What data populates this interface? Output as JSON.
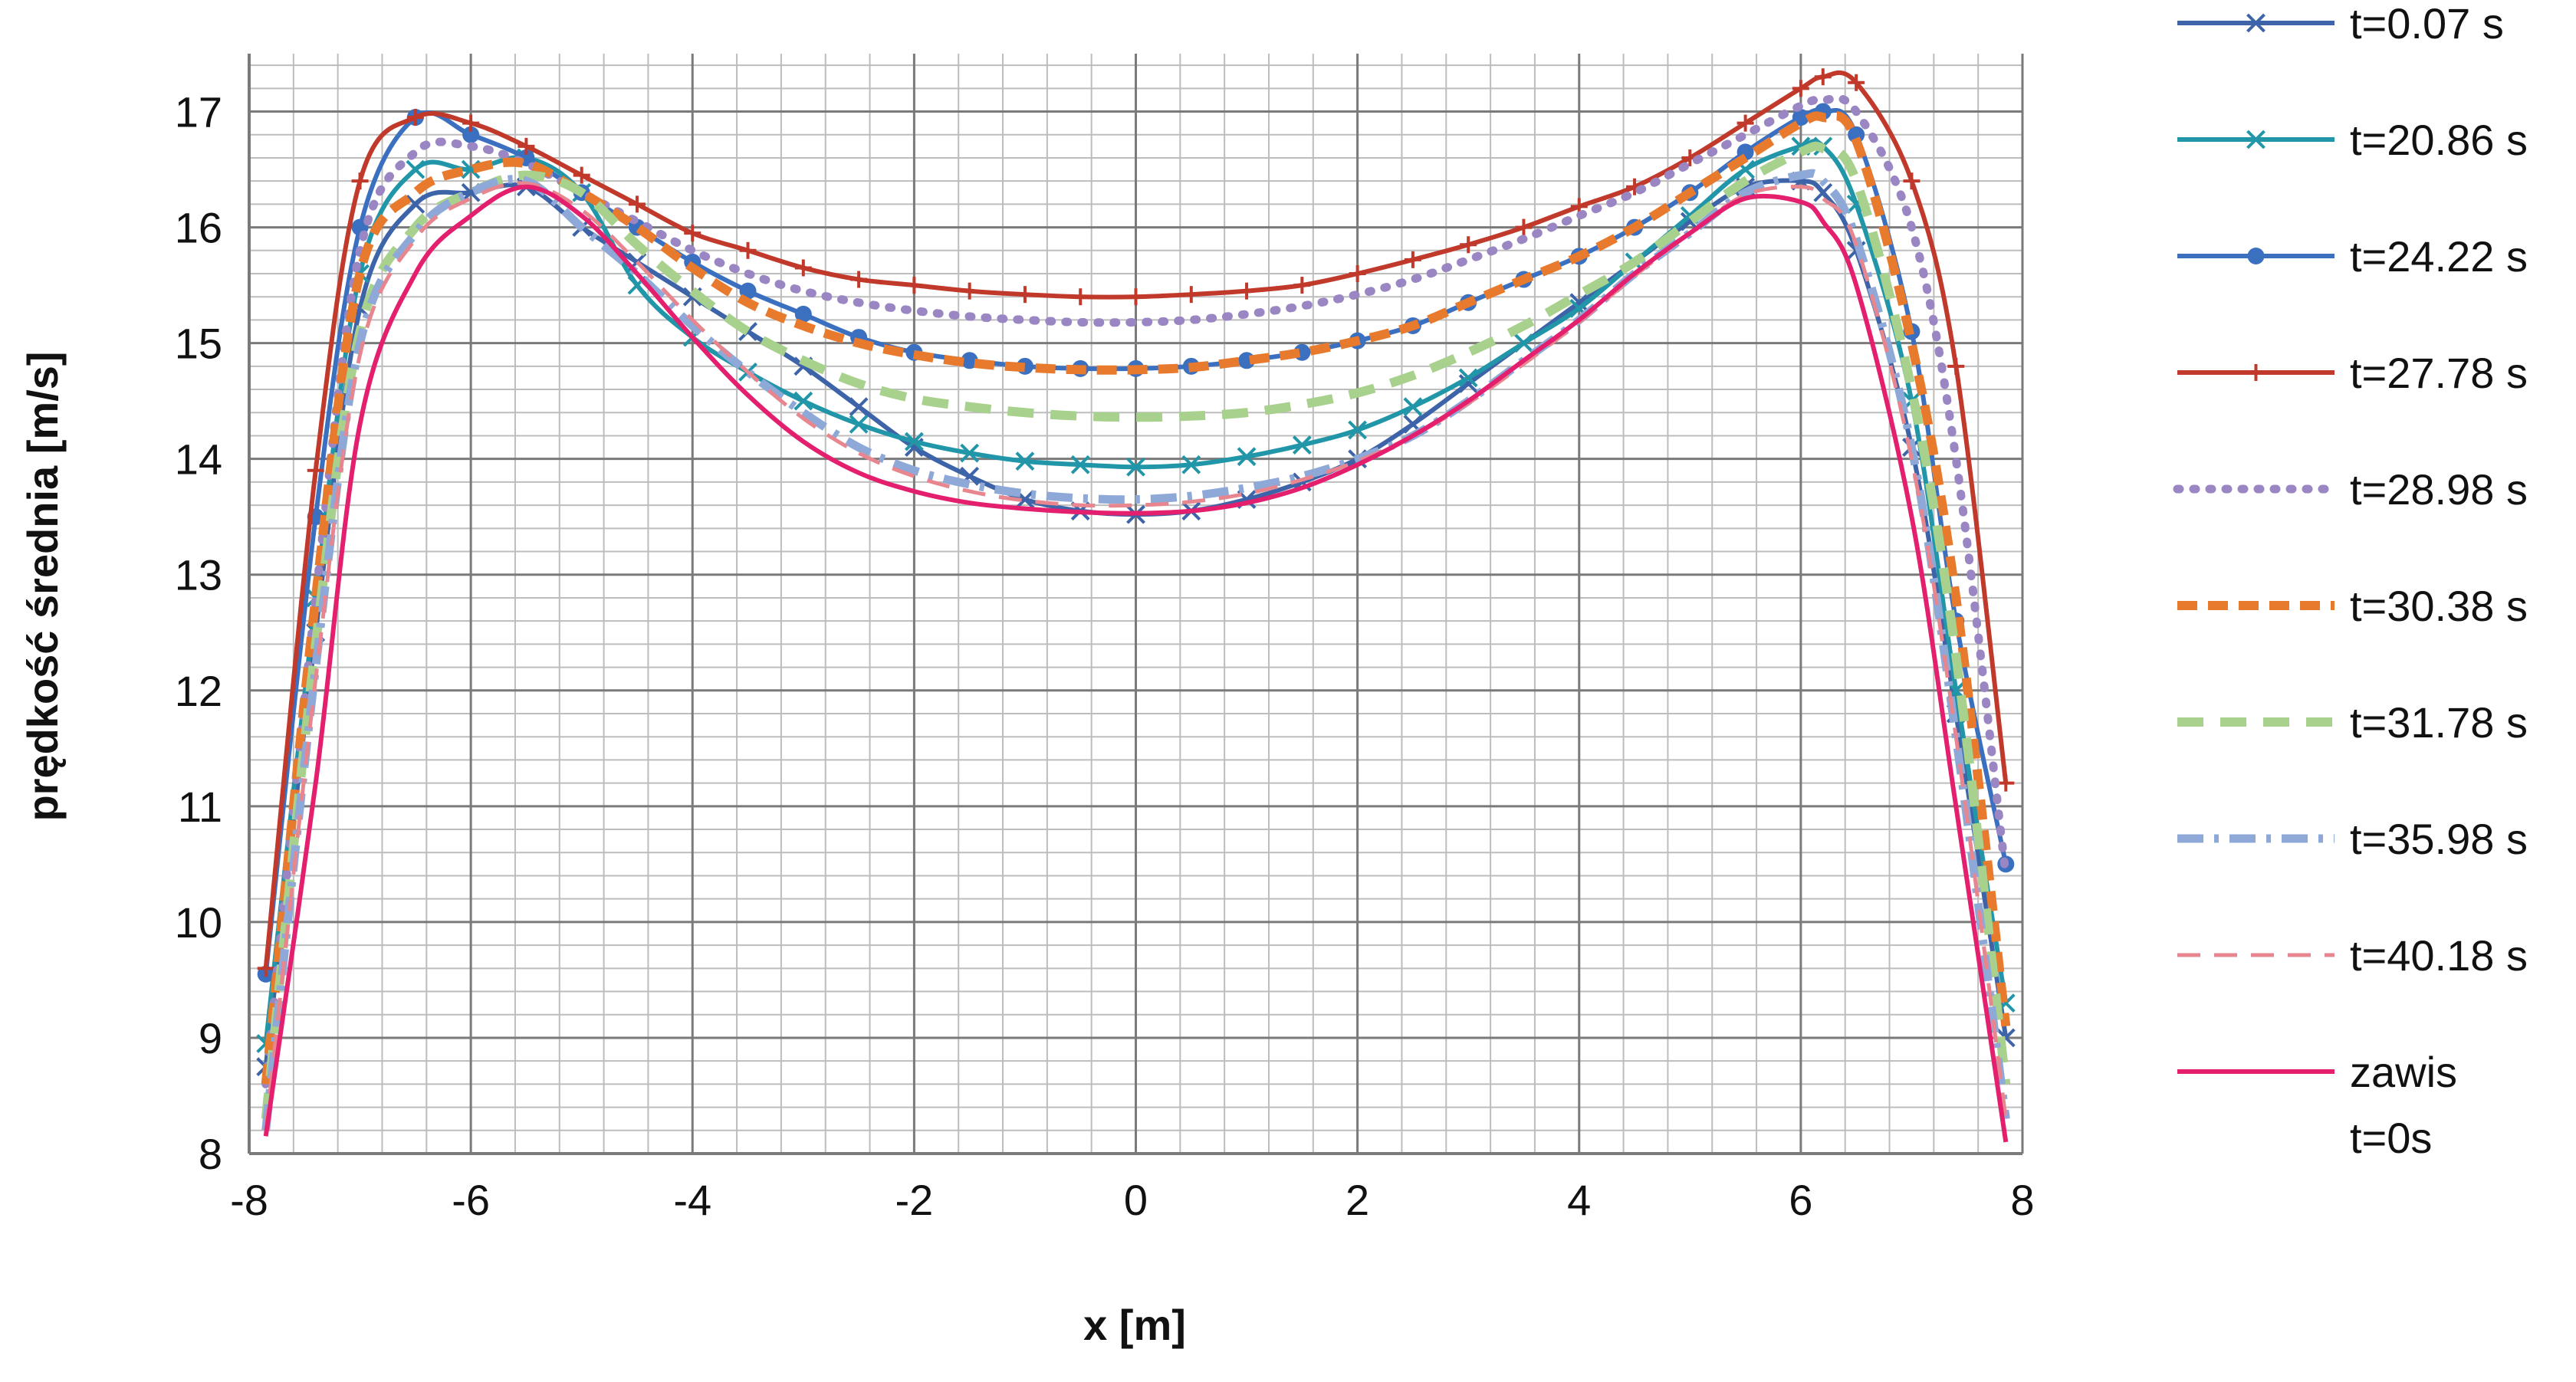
{
  "chart_data": {
    "type": "line",
    "title": "",
    "xlabel": "x [m]",
    "ylabel": "prędkość średnia [m/s]",
    "xlim": [
      -8,
      8
    ],
    "ylim": [
      8,
      17.5
    ],
    "x_ticks": [
      -8,
      -6,
      -4,
      -2,
      0,
      2,
      4,
      6,
      8
    ],
    "y_ticks": [
      8,
      9,
      10,
      11,
      12,
      13,
      14,
      15,
      16,
      17
    ],
    "grid": true,
    "legend_position": "right",
    "x": [
      -7.85,
      -7.4,
      -7.0,
      -6.5,
      -6.0,
      -5.5,
      -5.0,
      -4.5,
      -4.0,
      -3.5,
      -3.0,
      -2.5,
      -2.0,
      -1.5,
      -1.0,
      -0.5,
      0,
      0.5,
      1.0,
      1.5,
      2.0,
      2.5,
      3.0,
      3.5,
      4.0,
      4.5,
      5.0,
      5.5,
      6.0,
      6.2,
      6.5,
      7.0,
      7.4,
      7.85
    ],
    "series": [
      {
        "name": "t=0.07 s",
        "color": "#3d63a8",
        "dash": "",
        "width": 6,
        "marker": "x",
        "values": [
          8.75,
          12.5,
          15.3,
          16.2,
          16.3,
          16.35,
          16.0,
          15.7,
          15.4,
          15.1,
          14.8,
          14.45,
          14.1,
          13.85,
          13.65,
          13.55,
          13.52,
          13.55,
          13.65,
          13.8,
          14.0,
          14.3,
          14.65,
          15.0,
          15.35,
          15.7,
          16.05,
          16.35,
          16.4,
          16.3,
          15.8,
          14.1,
          11.8,
          9.0
        ]
      },
      {
        "name": "t=20.86 s",
        "color": "#2196a8",
        "dash": "",
        "width": 6,
        "marker": "x",
        "values": [
          8.95,
          12.8,
          15.6,
          16.5,
          16.5,
          16.6,
          16.3,
          15.5,
          15.05,
          14.75,
          14.5,
          14.3,
          14.15,
          14.05,
          13.98,
          13.95,
          13.93,
          13.95,
          14.02,
          14.12,
          14.25,
          14.45,
          14.7,
          15.0,
          15.3,
          15.7,
          16.1,
          16.5,
          16.7,
          16.7,
          16.2,
          14.5,
          12.0,
          9.3
        ]
      },
      {
        "name": "t=24.22 s",
        "color": "#3b6fc0",
        "dash": "",
        "width": 6,
        "marker": "dot",
        "values": [
          9.55,
          13.5,
          16.0,
          16.95,
          16.8,
          16.6,
          16.3,
          16.0,
          15.7,
          15.45,
          15.25,
          15.05,
          14.92,
          14.85,
          14.8,
          14.78,
          14.78,
          14.8,
          14.85,
          14.92,
          15.02,
          15.15,
          15.35,
          15.55,
          15.75,
          16.0,
          16.3,
          16.65,
          16.95,
          17.0,
          16.8,
          15.1,
          12.6,
          10.5
        ]
      },
      {
        "name": "t=27.78 s",
        "color": "#c0392b",
        "dash": "",
        "width": 6,
        "marker": "plus",
        "values": [
          9.6,
          13.9,
          16.4,
          16.95,
          16.9,
          16.7,
          16.45,
          16.2,
          15.95,
          15.8,
          15.65,
          15.55,
          15.5,
          15.45,
          15.42,
          15.4,
          15.4,
          15.42,
          15.45,
          15.5,
          15.6,
          15.72,
          15.85,
          16.0,
          16.18,
          16.35,
          16.6,
          16.9,
          17.2,
          17.3,
          17.25,
          16.4,
          14.8,
          11.2
        ]
      },
      {
        "name": "t=28.98 s",
        "color": "#9b86c4",
        "dash": "3 18",
        "width": 11,
        "marker": "",
        "values": [
          8.6,
          12.8,
          15.8,
          16.65,
          16.7,
          16.55,
          16.3,
          16.05,
          15.8,
          15.6,
          15.45,
          15.35,
          15.28,
          15.23,
          15.2,
          15.18,
          15.18,
          15.2,
          15.25,
          15.32,
          15.42,
          15.55,
          15.72,
          15.9,
          16.1,
          16.3,
          16.55,
          16.8,
          17.05,
          17.1,
          17.0,
          16.0,
          14.0,
          10.4
        ]
      },
      {
        "name": "t=30.38 s",
        "color": "#e87a2e",
        "dash": "26 14",
        "width": 12,
        "marker": "",
        "values": [
          8.6,
          12.8,
          15.6,
          16.3,
          16.5,
          16.55,
          16.3,
          16.0,
          15.65,
          15.35,
          15.15,
          15.0,
          14.9,
          14.83,
          14.79,
          14.77,
          14.77,
          14.79,
          14.85,
          14.92,
          15.02,
          15.15,
          15.35,
          15.55,
          15.75,
          16.0,
          16.3,
          16.6,
          16.9,
          16.95,
          16.75,
          15.0,
          12.8,
          9.1
        ]
      },
      {
        "name": "t=31.78 s",
        "color": "#a8d18d",
        "dash": "34 22",
        "width": 12,
        "marker": "",
        "values": [
          8.3,
          12.4,
          15.1,
          16.0,
          16.3,
          16.45,
          16.3,
          15.85,
          15.45,
          15.1,
          14.85,
          14.65,
          14.52,
          14.45,
          14.4,
          14.37,
          14.36,
          14.37,
          14.4,
          14.47,
          14.57,
          14.72,
          14.92,
          15.15,
          15.42,
          15.7,
          16.05,
          16.4,
          16.65,
          16.68,
          16.4,
          14.6,
          12.3,
          8.6
        ]
      },
      {
        "name": "t=35.98 s",
        "color": "#8ea8d8",
        "dash": "34 14 6 14",
        "width": 11,
        "marker": "",
        "values": [
          8.2,
          12.2,
          15.0,
          15.95,
          16.3,
          16.4,
          16.0,
          15.6,
          15.15,
          14.75,
          14.4,
          14.1,
          13.9,
          13.78,
          13.7,
          13.66,
          13.65,
          13.68,
          13.75,
          13.85,
          14.0,
          14.2,
          14.5,
          14.85,
          15.2,
          15.6,
          15.95,
          16.3,
          16.45,
          16.4,
          15.9,
          14.1,
          11.6,
          8.3
        ]
      },
      {
        "name": "t=40.18 s",
        "color": "#e8868f",
        "dash": "30 18",
        "width": 5,
        "marker": "",
        "values": [
          8.2,
          12.1,
          14.9,
          15.9,
          16.25,
          16.38,
          16.15,
          15.7,
          15.2,
          14.75,
          14.35,
          14.05,
          13.85,
          13.72,
          13.64,
          13.6,
          13.6,
          13.63,
          13.7,
          13.82,
          13.98,
          14.2,
          14.48,
          14.82,
          15.18,
          15.58,
          15.95,
          16.28,
          16.35,
          16.25,
          15.85,
          14.0,
          11.6,
          8.3
        ]
      },
      {
        "name": "zawis\nt=0s",
        "color": "#e31f6e",
        "dash": "",
        "width": 6,
        "marker": "",
        "values": [
          8.15,
          11.2,
          14.3,
          15.6,
          16.1,
          16.35,
          16.1,
          15.6,
          15.05,
          14.55,
          14.15,
          13.88,
          13.72,
          13.62,
          13.57,
          13.54,
          13.53,
          13.55,
          13.62,
          13.75,
          13.95,
          14.2,
          14.5,
          14.85,
          15.2,
          15.6,
          15.95,
          16.25,
          16.22,
          16.05,
          15.5,
          13.5,
          11.0,
          8.1
        ]
      }
    ]
  }
}
